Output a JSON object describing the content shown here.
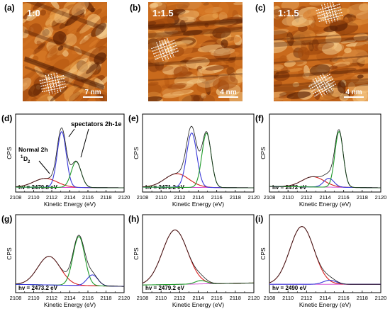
{
  "figure": {
    "stm_panels": [
      {
        "letter": "(a)",
        "ratio": "1:0",
        "scalebar": "7 nm"
      },
      {
        "letter": "(b)",
        "ratio": "1:1.5",
        "scalebar": "4 nm"
      },
      {
        "letter": "(c)",
        "ratio": "1:1.5",
        "scalebar": "4 nm"
      }
    ],
    "annotations": {
      "spectators": "spectators 2h-1e",
      "normal_line1": "Normal 2h",
      "normal_sup": "1",
      "normal_D": "D",
      "normal_sub": "2"
    },
    "colors": {
      "total": "#1a1a1a",
      "normal": "#d62020",
      "spectator_a": "#3a3ad8",
      "spectator_b": "#1f9a2a",
      "background": "#d040d0"
    }
  },
  "chart_data": [
    {
      "panel": "(d)",
      "type": "line",
      "hv": "hv = 2470.8 eV",
      "xlabel": "Kinetic Energy (eV)",
      "ylabel": "CPS",
      "xlim": [
        2108,
        2120
      ],
      "xticks": [
        "2108",
        "2110",
        "2112",
        "2114",
        "2116",
        "2118",
        "2120"
      ],
      "peaks": [
        {
          "name": "normal",
          "center": 2111.3,
          "height": 0.13,
          "width": 1.3
        },
        {
          "name": "spectator_a",
          "center": 2113.1,
          "height": 0.82,
          "width": 0.5
        },
        {
          "name": "spectator_b",
          "center": 2114.7,
          "height": 0.38,
          "width": 0.55
        }
      ],
      "background": [
        0.01,
        0.0
      ]
    },
    {
      "panel": "(e)",
      "type": "line",
      "hv": "hv = 2471.2 eV",
      "xlabel": "Kinetic Energy (eV)",
      "ylabel": "CPS",
      "xlim": [
        2108,
        2120
      ],
      "xticks": [
        "2108",
        "2110",
        "2112",
        "2114",
        "2116",
        "2118",
        "2120"
      ],
      "peaks": [
        {
          "name": "normal",
          "center": 2111.7,
          "height": 0.2,
          "width": 1.3
        },
        {
          "name": "spectator_a",
          "center": 2113.3,
          "height": 0.8,
          "width": 0.55
        },
        {
          "name": "spectator_b",
          "center": 2114.9,
          "height": 0.8,
          "width": 0.5
        }
      ],
      "background": [
        0.01,
        0.0
      ]
    },
    {
      "panel": "(f)",
      "type": "line",
      "hv": "hv = 2472 eV",
      "xlabel": "Kinetic Energy (eV)",
      "ylabel": "CPS",
      "xlim": [
        2108,
        2120
      ],
      "xticks": [
        "2108",
        "2110",
        "2112",
        "2114",
        "2116",
        "2118",
        "2120"
      ],
      "peaks": [
        {
          "name": "normal",
          "center": 2112.7,
          "height": 0.15,
          "width": 1.2
        },
        {
          "name": "spectator_a",
          "center": 2114.4,
          "height": 0.13,
          "width": 0.55
        },
        {
          "name": "spectator_b",
          "center": 2115.5,
          "height": 0.82,
          "width": 0.45
        }
      ],
      "background": [
        0.02,
        0.0
      ]
    },
    {
      "panel": "(g)",
      "type": "line",
      "hv": "hv = 2473.2 eV",
      "xlabel": "Kinetic Energy (eV)",
      "ylabel": "CPS",
      "xlim": [
        2108,
        2120
      ],
      "xticks": [
        "2108",
        "2110",
        "2112",
        "2114",
        "2116",
        "2118",
        "2120"
      ],
      "peaks": [
        {
          "name": "normal",
          "center": 2111.7,
          "height": 0.42,
          "width": 1.25
        },
        {
          "name": "spectator_b",
          "center": 2115.0,
          "height": 0.72,
          "width": 0.65
        },
        {
          "name": "spectator_a",
          "center": 2116.5,
          "height": 0.16,
          "width": 0.6
        }
      ],
      "background": [
        0.06,
        0.03
      ]
    },
    {
      "panel": "(h)",
      "type": "line",
      "hv": "hv = 2479.2 eV",
      "xlabel": "Kinetic Energy (eV)",
      "ylabel": "CPS",
      "xlim": [
        2108,
        2120
      ],
      "xticks": [
        "2108",
        "2110",
        "2112",
        "2114",
        "2116",
        "2118",
        "2120"
      ],
      "peaks": [
        {
          "name": "normal",
          "center": 2111.5,
          "height": 0.8,
          "width": 1.35
        },
        {
          "name": "spectator_b",
          "center": 2114.3,
          "height": 0.05,
          "width": 0.6
        }
      ],
      "background": [
        0.05,
        0.08
      ]
    },
    {
      "panel": "(i)",
      "type": "line",
      "hv": "hv = 2490 eV",
      "xlabel": "Kinetic Energy (eV)",
      "ylabel": "CPS",
      "xlim": [
        2108,
        2120
      ],
      "xticks": [
        "2108",
        "2110",
        "2112",
        "2114",
        "2116",
        "2118",
        "2120"
      ],
      "peaks": [
        {
          "name": "normal",
          "center": 2111.5,
          "height": 0.85,
          "width": 1.3
        },
        {
          "name": "spectator_a",
          "center": 2114.5,
          "height": 0.06,
          "width": 0.7
        }
      ],
      "background": [
        0.06,
        0.06
      ]
    }
  ]
}
